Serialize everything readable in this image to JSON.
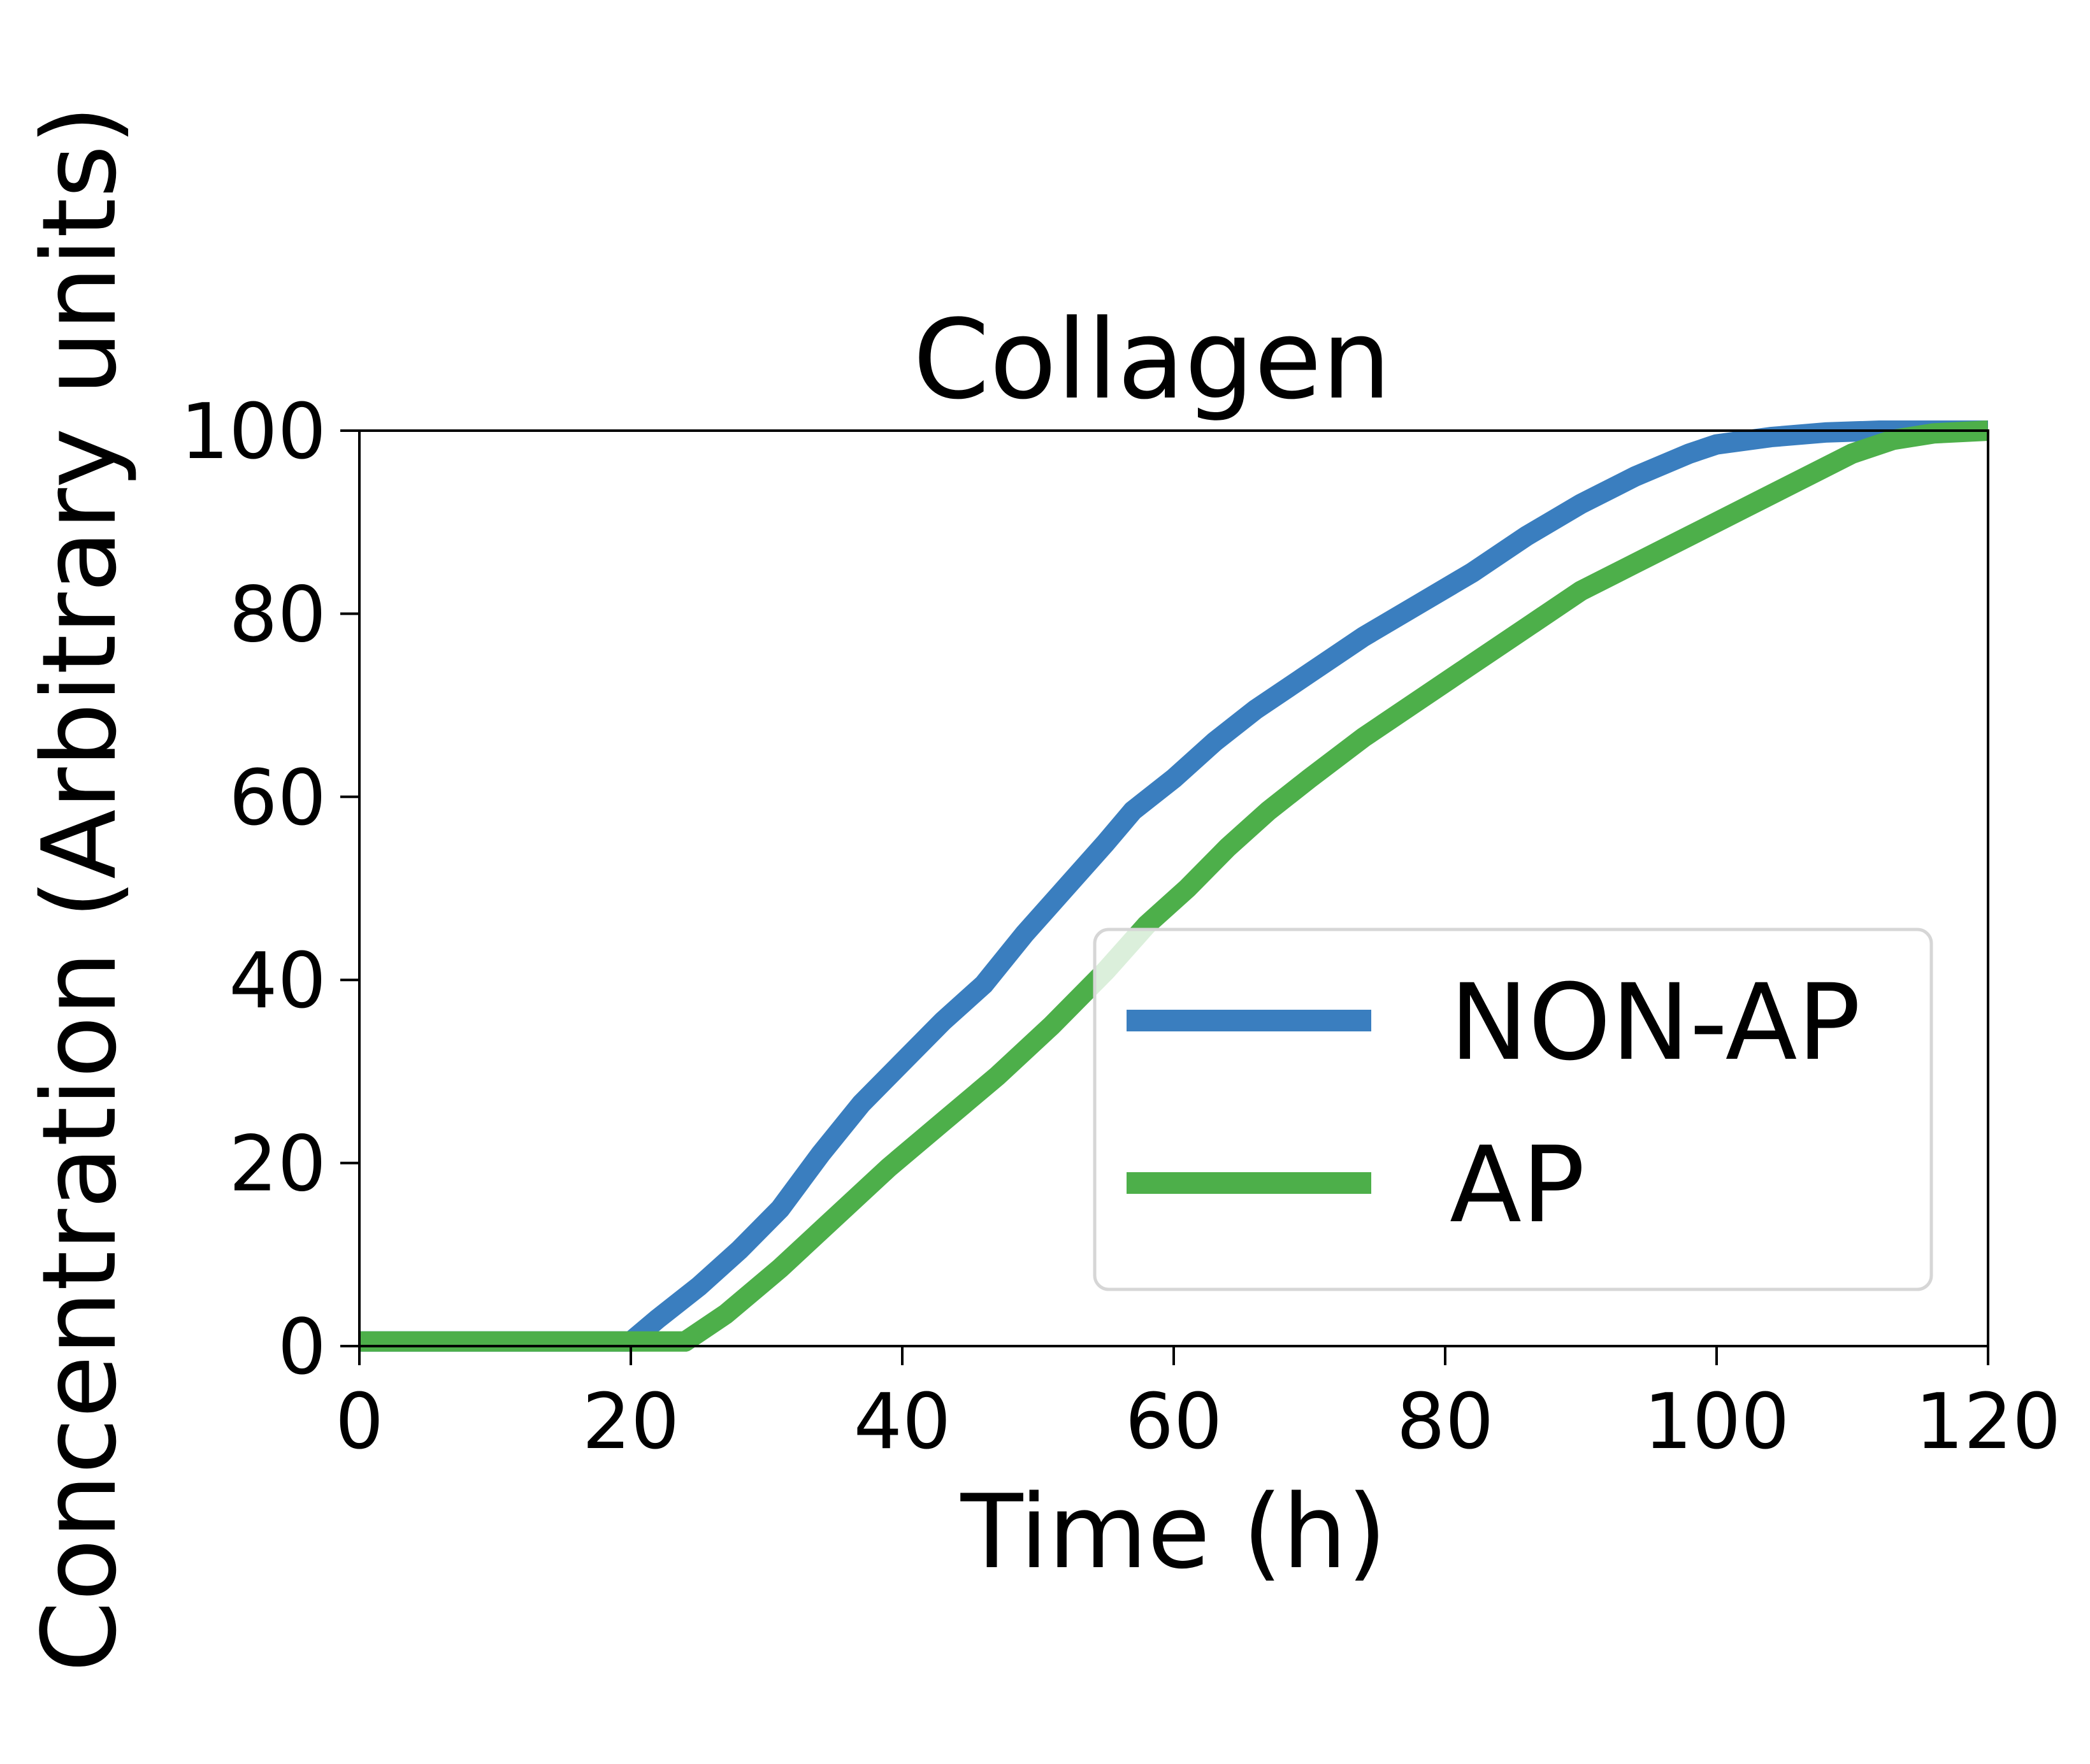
{
  "chart_data": {
    "type": "line",
    "title": "Collagen",
    "xlabel": "Time (h)",
    "ylabel": "Concentration (Arbitrary units)",
    "xlim": [
      0,
      120
    ],
    "ylim": [
      0,
      100
    ],
    "xticks": [
      "0",
      "20",
      "40",
      "60",
      "80",
      "100",
      "120"
    ],
    "yticks": [
      "0",
      "20",
      "40",
      "60",
      "80",
      "100"
    ],
    "grid": false,
    "legend_position": "lower-right",
    "series": [
      {
        "name": "NON-AP",
        "color": "#3a7ebf",
        "points": [
          [
            0,
            0.5
          ],
          [
            20,
            0.5
          ],
          [
            22,
            3
          ],
          [
            25,
            6.5
          ],
          [
            28,
            10.5
          ],
          [
            31,
            15
          ],
          [
            34,
            21
          ],
          [
            37,
            26.5
          ],
          [
            40,
            31
          ],
          [
            43,
            35.5
          ],
          [
            46,
            39.5
          ],
          [
            49,
            45
          ],
          [
            52,
            50
          ],
          [
            55,
            55
          ],
          [
            57,
            58.5
          ],
          [
            60,
            62
          ],
          [
            63,
            66
          ],
          [
            66,
            69.5
          ],
          [
            70,
            73.5
          ],
          [
            74,
            77.5
          ],
          [
            78,
            81
          ],
          [
            82,
            84.5
          ],
          [
            86,
            88.5
          ],
          [
            90,
            92
          ],
          [
            94,
            95
          ],
          [
            98,
            97.5
          ],
          [
            100,
            98.5
          ],
          [
            104,
            99.3
          ],
          [
            108,
            99.8
          ],
          [
            112,
            100
          ],
          [
            120,
            100
          ]
        ]
      },
      {
        "name": "AP",
        "color": "#4daf4a",
        "points": [
          [
            0,
            0.5
          ],
          [
            24,
            0.5
          ],
          [
            27,
            3.5
          ],
          [
            31,
            8.5
          ],
          [
            35,
            14
          ],
          [
            39,
            19.5
          ],
          [
            43,
            24.5
          ],
          [
            47,
            29.5
          ],
          [
            51,
            35
          ],
          [
            55,
            41
          ],
          [
            58,
            46
          ],
          [
            61,
            50
          ],
          [
            64,
            54.5
          ],
          [
            67,
            58.5
          ],
          [
            70,
            62
          ],
          [
            74,
            66.5
          ],
          [
            78,
            70.5
          ],
          [
            82,
            74.5
          ],
          [
            86,
            78.5
          ],
          [
            90,
            82.5
          ],
          [
            94,
            85.5
          ],
          [
            98,
            88.5
          ],
          [
            102,
            91.5
          ],
          [
            106,
            94.5
          ],
          [
            110,
            97.5
          ],
          [
            113,
            99
          ],
          [
            116,
            99.7
          ],
          [
            120,
            100
          ]
        ]
      }
    ]
  }
}
